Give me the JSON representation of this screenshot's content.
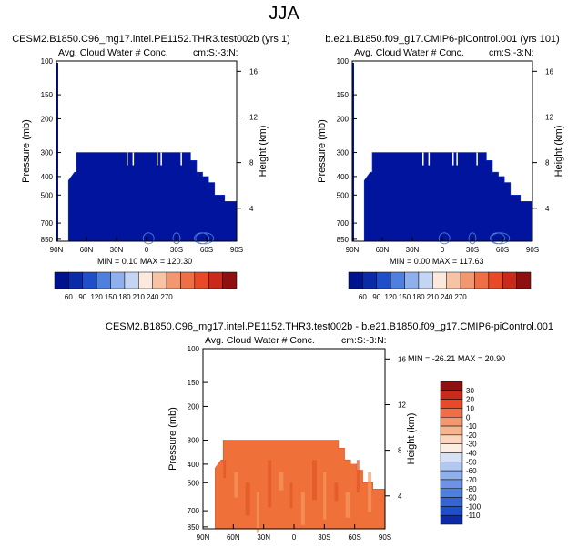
{
  "figure_title": "JJA",
  "colors": {
    "base_fill": "#00149e",
    "base_edge": "#1535c8",
    "diff_fill": "#f0703a",
    "diff_light": "#f59a60",
    "diff_dark": "#e05528"
  },
  "chart_data": [
    {
      "id": "p1",
      "type": "heatmap",
      "title": "CESM2.B1850.C96_mg17.intel.PE1152.THR3.test002b (yrs 1)",
      "subtitle_left": "Avg. Cloud Water # Conc.",
      "subtitle_right": "cm:S:-3:N:",
      "ylabel": "Pressure (mb)",
      "ylabel_right": "Height (km)",
      "x_ticks": [
        "90N",
        "60N",
        "30N",
        "0",
        "30S",
        "60S",
        "90S"
      ],
      "y_ticks": [
        "100",
        "150",
        "200",
        "300",
        "400",
        "500",
        "700",
        "850"
      ],
      "y_ticks_right": [
        "16",
        "12",
        "8",
        "4"
      ],
      "min_label": "MIN =",
      "min_value": "0.10",
      "max_label": "MAX =",
      "max_value": "120.30",
      "region_top_pressure": 300,
      "region_lat_range": [
        "78N",
        "90S"
      ],
      "colorbar": {
        "orientation": "horizontal",
        "labels": [
          "60",
          "90",
          "120",
          "150",
          "180",
          "210",
          "240",
          "270"
        ],
        "colors": [
          "#00128c",
          "#0a2aa8",
          "#1f4fc8",
          "#4f7fdf",
          "#8fb0ec",
          "#c4d5f4",
          "#fbe9dd",
          "#f7c3a4",
          "#f39770",
          "#ef6e46",
          "#e84a28",
          "#c92a1a",
          "#8e1010"
        ]
      }
    },
    {
      "id": "p2",
      "type": "heatmap",
      "title": "b.e21.B1850.f09_g17.CMIP6-piControl.001 (yrs 101)",
      "subtitle_left": "Avg. Cloud Water # Conc.",
      "subtitle_right": "cm:S:-3:N:",
      "ylabel": "Pressure (mb)",
      "ylabel_right": "Height (km)",
      "x_ticks": [
        "90N",
        "60N",
        "30N",
        "0",
        "30S",
        "60S",
        "90S"
      ],
      "y_ticks": [
        "100",
        "150",
        "200",
        "300",
        "400",
        "500",
        "700",
        "850"
      ],
      "y_ticks_right": [
        "16",
        "12",
        "8",
        "4"
      ],
      "min_label": "MIN =",
      "min_value": "0.00",
      "max_label": "MAX =",
      "max_value": "117.63",
      "region_top_pressure": 300,
      "region_lat_range": [
        "78N",
        "90S"
      ],
      "colorbar": {
        "orientation": "horizontal",
        "labels": [
          "60",
          "90",
          "120",
          "150",
          "180",
          "210",
          "240",
          "270"
        ],
        "colors": [
          "#00128c",
          "#0a2aa8",
          "#1f4fc8",
          "#4f7fdf",
          "#8fb0ec",
          "#c4d5f4",
          "#fbe9dd",
          "#f7c3a4",
          "#f39770",
          "#ef6e46",
          "#e84a28",
          "#c92a1a",
          "#8e1010"
        ]
      }
    },
    {
      "id": "p3",
      "type": "heatmap",
      "title": "CESM2.B1850.C96_mg17.intel.PE1152.THR3.test002b - b.e21.B1850.f09_g17.CMIP6-piControl.001",
      "subtitle_left": "Avg. Cloud Water # Conc.",
      "subtitle_right": "cm:S:-3:N:",
      "ylabel": "Pressure (mb)",
      "ylabel_right": "Height (km)",
      "x_ticks": [
        "90N",
        "60N",
        "30N",
        "0",
        "30S",
        "60S",
        "90S"
      ],
      "y_ticks": [
        "100",
        "150",
        "200",
        "300",
        "400",
        "500",
        "700",
        "850"
      ],
      "y_ticks_right": [
        "16",
        "12",
        "8",
        "4"
      ],
      "min_label": "MIN =",
      "min_value": "-26.21",
      "max_label": "MAX =",
      "max_value": "20.90",
      "region_top_pressure": 300,
      "region_lat_range": [
        "78N",
        "90S"
      ],
      "colorbar": {
        "orientation": "vertical",
        "labels": [
          "30",
          "20",
          "10",
          "0",
          "-10",
          "-20",
          "-30",
          "-40",
          "-50",
          "-60",
          "-70",
          "-80",
          "-90",
          "-100",
          "-110"
        ],
        "colors": [
          "#8e1010",
          "#c92a1a",
          "#e84a28",
          "#ef6e46",
          "#f39770",
          "#f7b58e",
          "#fbd5bd",
          "#fdeee4",
          "#d6e1f6",
          "#b3c8f0",
          "#8fb0ec",
          "#6d93e4",
          "#4f7fdf",
          "#3565d2",
          "#1f4fc8",
          "#0a2aa8"
        ]
      }
    }
  ]
}
